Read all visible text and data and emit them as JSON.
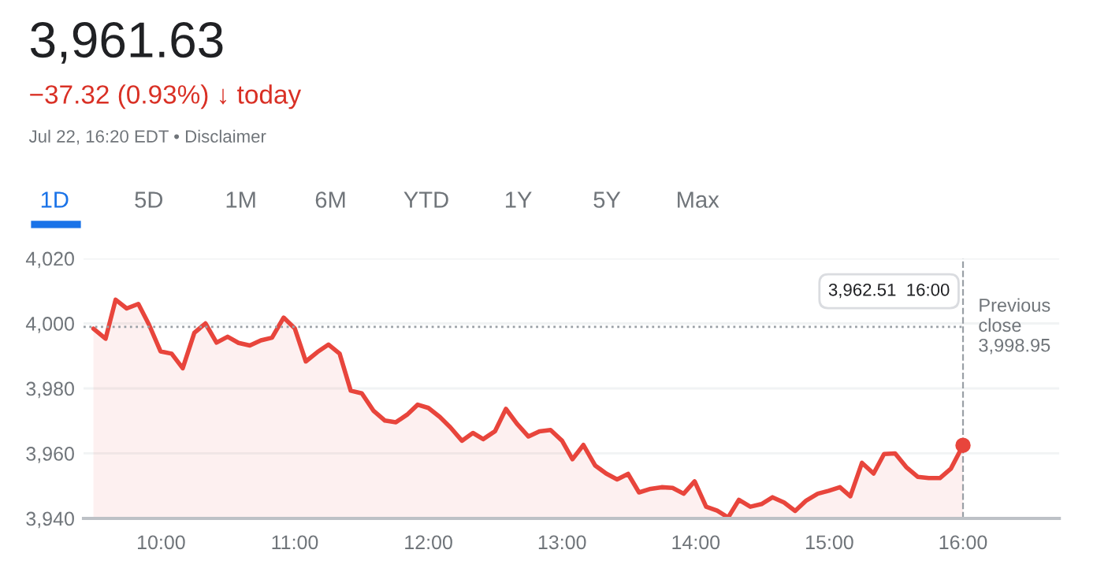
{
  "chart_data": {
    "type": "area",
    "title": "3,961.63",
    "subtitle": "−37.32 (0.93%) ↓ today",
    "annotations": [
      "Jul 22, 16:20 EDT • Disclaimer",
      "1D",
      "5D",
      "1M",
      "6M",
      "YTD",
      "1Y",
      "5Y",
      "Max",
      "3,962.51  16:00"
    ],
    "x": [
      9.494,
      9.585,
      9.66,
      9.743,
      9.83,
      9.909,
      9.996,
      10.079,
      10.162,
      10.249,
      10.332,
      10.415,
      10.498,
      10.58,
      10.664,
      10.747,
      10.83,
      10.917,
      11.0,
      11.083,
      11.17,
      11.253,
      11.336,
      11.419,
      11.502,
      11.588,
      11.675,
      11.757,
      11.84,
      11.92,
      12.0,
      12.086,
      12.165,
      12.251,
      12.333,
      12.41,
      12.498,
      12.58,
      12.663,
      12.749,
      12.831,
      12.914,
      13.0,
      13.078,
      13.16,
      13.247,
      13.33,
      13.412,
      13.494,
      13.576,
      13.663,
      13.745,
      13.827,
      13.91,
      13.992,
      14.078,
      14.161,
      14.243,
      14.323,
      14.409,
      14.492,
      14.575,
      14.661,
      14.744,
      14.827,
      14.913,
      14.996,
      15.079,
      15.157,
      15.244,
      15.331,
      15.409,
      15.492,
      15.575,
      15.661,
      15.744,
      15.827,
      15.909,
      16.0
    ],
    "series": [
      {
        "color": "#e8453c",
        "values": [
          3998.4,
          3995.3,
          4007.3,
          4004.6,
          4006.0,
          3999.7,
          3991.4,
          3990.7,
          3986.2,
          3997.1,
          4000.0,
          3994.1,
          3995.9,
          3994.0,
          3993.2,
          3994.8,
          3995.6,
          4001.8,
          3998.5,
          3988.3,
          3991.2,
          3993.5,
          3990.7,
          3979.3,
          3978.5,
          3973.2,
          3970.1,
          3969.6,
          3971.9,
          3975.0,
          3974.0,
          3971.2,
          3968.0,
          3963.9,
          3966.3,
          3964.4,
          3966.8,
          3973.7,
          3969.1,
          3965.2,
          3966.8,
          3967.2,
          3963.9,
          3958.2,
          3962.6,
          3956.3,
          3953.8,
          3952.0,
          3953.7,
          3948.0,
          3949.1,
          3949.6,
          3949.4,
          3947.6,
          3951.4,
          3943.6,
          3942.4,
          3940.3,
          3945.7,
          3943.6,
          3944.4,
          3946.5,
          3944.9,
          3942.3,
          3945.5,
          3947.6,
          3948.5,
          3949.6,
          3946.8,
          3957.1,
          3953.8,
          3959.8,
          3960.0,
          3955.8,
          3952.8,
          3952.4,
          3952.4,
          3955.3,
          3962.5
        ]
      }
    ],
    "xlim": [
      9.42,
      16.72
    ],
    "xticks": [
      {
        "value": 10,
        "label": "10:00"
      },
      {
        "value": 11,
        "label": "11:00"
      },
      {
        "value": 12,
        "label": "12:00"
      },
      {
        "value": 13,
        "label": "13:00"
      },
      {
        "value": 14,
        "label": "14:00"
      },
      {
        "value": 15,
        "label": "15:00"
      },
      {
        "value": 16,
        "label": "16:00"
      }
    ],
    "ylim": [
      3940,
      4020
    ],
    "yticks": [
      {
        "value": 3940,
        "label": "3,940"
      },
      {
        "value": 3960,
        "label": "3,960"
      },
      {
        "value": 3980,
        "label": "3,980"
      },
      {
        "value": 4000,
        "label": "4,000"
      },
      {
        "value": 4020,
        "label": "4,020"
      }
    ],
    "ref_lines": [
      {
        "axis": "y",
        "value": 3998.95,
        "label": "Previous\nclose\n3,998.95",
        "line_style": "dotted",
        "color": "#9aa0a6"
      },
      {
        "axis": "x",
        "value": 16.0,
        "line_style": "dashed",
        "color": "#9aa0a6"
      }
    ],
    "grid": "y",
    "marker": "none",
    "line_style": "solid"
  }
}
